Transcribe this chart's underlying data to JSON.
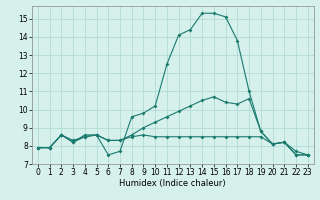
{
  "title": "",
  "xlabel": "Humidex (Indice chaleur)",
  "bg_color": "#d6f0eb",
  "line_color": "#1a7a6e",
  "grid_color": "#aad8d0",
  "xlim": [
    -0.5,
    23.5
  ],
  "ylim": [
    7.0,
    15.7
  ],
  "yticks": [
    7,
    8,
    9,
    10,
    11,
    12,
    13,
    14,
    15
  ],
  "xticks": [
    0,
    1,
    2,
    3,
    4,
    5,
    6,
    7,
    8,
    9,
    10,
    11,
    12,
    13,
    14,
    15,
    16,
    17,
    18,
    19,
    20,
    21,
    22,
    23
  ],
  "series1_x": [
    0,
    1,
    2,
    3,
    4,
    5,
    6,
    7,
    8,
    9,
    10,
    11,
    12,
    13,
    14,
    15,
    16,
    17,
    18,
    19,
    20,
    21,
    22,
    23
  ],
  "series1_y": [
    7.9,
    7.9,
    8.6,
    8.2,
    8.6,
    8.6,
    7.5,
    7.7,
    9.6,
    9.8,
    10.2,
    12.5,
    14.1,
    14.4,
    15.3,
    15.3,
    15.1,
    13.8,
    11.0,
    8.8,
    8.1,
    8.2,
    7.5,
    7.5
  ],
  "series2_x": [
    0,
    1,
    2,
    3,
    4,
    5,
    6,
    7,
    8,
    9,
    10,
    11,
    12,
    13,
    14,
    15,
    16,
    17,
    18,
    19,
    20,
    21,
    22,
    23
  ],
  "series2_y": [
    7.9,
    7.9,
    8.6,
    8.3,
    8.5,
    8.6,
    8.3,
    8.3,
    8.6,
    9.0,
    9.3,
    9.6,
    9.9,
    10.2,
    10.5,
    10.7,
    10.4,
    10.3,
    10.6,
    8.8,
    8.1,
    8.2,
    7.5,
    7.5
  ],
  "series3_x": [
    0,
    1,
    2,
    3,
    4,
    5,
    6,
    7,
    8,
    9,
    10,
    11,
    12,
    13,
    14,
    15,
    16,
    17,
    18,
    19,
    20,
    21,
    22,
    23
  ],
  "series3_y": [
    7.9,
    7.9,
    8.6,
    8.2,
    8.5,
    8.6,
    8.3,
    8.3,
    8.5,
    8.6,
    8.5,
    8.5,
    8.5,
    8.5,
    8.5,
    8.5,
    8.5,
    8.5,
    8.5,
    8.5,
    8.1,
    8.2,
    7.7,
    7.5
  ],
  "tick_fontsize": 5.5,
  "xlabel_fontsize": 6.0,
  "marker_size": 2.0,
  "linewidth": 0.8
}
